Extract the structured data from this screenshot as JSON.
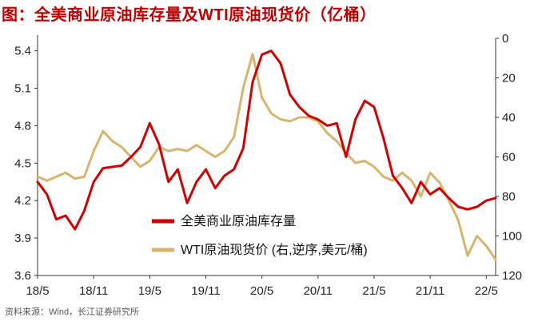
{
  "title": "图：全美商业原油库存量及WTI原油现货价（亿桶）",
  "source": "资料来源：Wind，长江证券研究所",
  "colors": {
    "title": "#c00000",
    "inventory": "#d40000",
    "wti": "#d8b46e"
  },
  "chart_data": {
    "type": "line",
    "title": "图：全美商业原油库存量及WTI原油现货价（亿桶）",
    "x_tick_labels": [
      "18/5",
      "18/11",
      "19/5",
      "19/11",
      "20/5",
      "20/11",
      "21/5",
      "21/11",
      "22/5"
    ],
    "x_range": [
      "2018-05",
      "2022-06"
    ],
    "y_left": {
      "label": "",
      "ticks": [
        "3.6",
        "3.9",
        "4.2",
        "4.5",
        "4.8",
        "5.1",
        "5.4"
      ],
      "range": [
        3.6,
        5.5
      ]
    },
    "y_right": {
      "label": "",
      "ticks": [
        "0",
        "20",
        "40",
        "60",
        "80",
        "100",
        "120"
      ],
      "range": [
        0,
        120
      ],
      "inverted": true
    },
    "legend": [
      {
        "name": "全美商业原油库存量",
        "color": "#d40000"
      },
      {
        "name": "WTI原油现货价 (右,逆序,美元/桶)",
        "color": "#d8b46e"
      }
    ],
    "series": [
      {
        "name": "全美商业原油库存量",
        "axis": "left",
        "x": [
          "2018-05",
          "2018-06",
          "2018-07",
          "2018-08",
          "2018-09",
          "2018-10",
          "2018-11",
          "2018-12",
          "2019-01",
          "2019-02",
          "2019-03",
          "2019-04",
          "2019-05",
          "2019-06",
          "2019-07",
          "2019-08",
          "2019-09",
          "2019-10",
          "2019-11",
          "2019-12",
          "2020-01",
          "2020-02",
          "2020-03",
          "2020-04",
          "2020-05",
          "2020-06",
          "2020-07",
          "2020-08",
          "2020-09",
          "2020-10",
          "2020-11",
          "2020-12",
          "2021-01",
          "2021-02",
          "2021-03",
          "2021-04",
          "2021-05",
          "2021-06",
          "2021-07",
          "2021-08",
          "2021-09",
          "2021-10",
          "2021-11",
          "2021-12",
          "2022-01",
          "2022-02",
          "2022-03",
          "2022-04",
          "2022-05",
          "2022-06"
        ],
        "values": [
          4.35,
          4.25,
          4.05,
          4.08,
          3.97,
          4.12,
          4.35,
          4.46,
          4.47,
          4.48,
          4.55,
          4.63,
          4.82,
          4.65,
          4.35,
          4.45,
          4.18,
          4.35,
          4.45,
          4.3,
          4.4,
          4.45,
          4.62,
          5.15,
          5.37,
          5.4,
          5.3,
          5.05,
          4.95,
          4.88,
          4.85,
          4.8,
          4.82,
          4.55,
          4.85,
          5.0,
          4.95,
          4.7,
          4.4,
          4.3,
          4.18,
          4.35,
          4.25,
          4.3,
          4.22,
          4.15,
          4.13,
          4.15,
          4.2,
          4.22
        ]
      },
      {
        "name": "WTI原油现货价 (右,逆序,美元/桶)",
        "axis": "right",
        "x": [
          "2018-05",
          "2018-06",
          "2018-07",
          "2018-08",
          "2018-09",
          "2018-10",
          "2018-11",
          "2018-12",
          "2019-01",
          "2019-02",
          "2019-03",
          "2019-04",
          "2019-05",
          "2019-06",
          "2019-07",
          "2019-08",
          "2019-09",
          "2019-10",
          "2019-11",
          "2019-12",
          "2020-01",
          "2020-02",
          "2020-03",
          "2020-04",
          "2020-05",
          "2020-06",
          "2020-07",
          "2020-08",
          "2020-09",
          "2020-10",
          "2020-11",
          "2020-12",
          "2021-01",
          "2021-02",
          "2021-03",
          "2021-04",
          "2021-05",
          "2021-06",
          "2021-07",
          "2021-08",
          "2021-09",
          "2021-10",
          "2021-11",
          "2021-12",
          "2022-01",
          "2022-02",
          "2022-03",
          "2022-04",
          "2022-05",
          "2022-06"
        ],
        "values": [
          70,
          72,
          70,
          68,
          71,
          70,
          57,
          47,
          52,
          55,
          60,
          65,
          62,
          55,
          57,
          56,
          57,
          54,
          57,
          60,
          57,
          50,
          25,
          8,
          30,
          38,
          41,
          42,
          40,
          40,
          42,
          48,
          52,
          58,
          63,
          62,
          65,
          70,
          72,
          68,
          72,
          80,
          68,
          73,
          82,
          92,
          110,
          100,
          105,
          112
        ]
      }
    ]
  }
}
